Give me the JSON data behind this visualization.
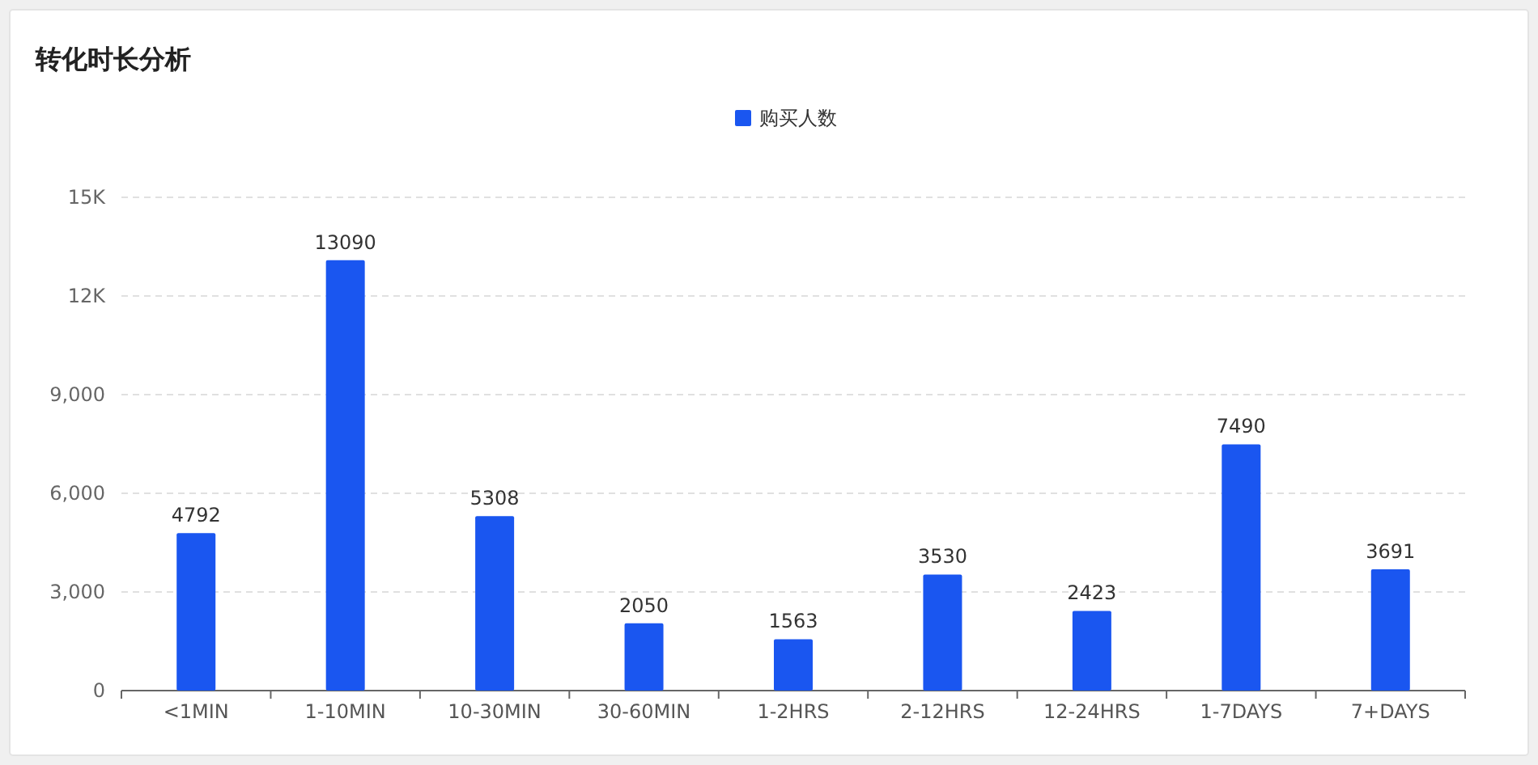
{
  "chart_data": {
    "type": "bar",
    "title": "转化时长分析",
    "categories": [
      "<1MIN",
      "1-10MIN",
      "10-30MIN",
      "30-60MIN",
      "1-2HRS",
      "2-12HRS",
      "12-24HRS",
      "1-7DAYS",
      "7+DAYS"
    ],
    "series": [
      {
        "name": "购买人数",
        "color": "#1a56f0",
        "values": [
          4792,
          13090,
          5308,
          2050,
          1563,
          3530,
          2423,
          7490,
          3691
        ]
      }
    ],
    "ylim": [
      0,
      15000
    ],
    "yticks": [
      0,
      {
        "value": 3000,
        "label": "3,000"
      },
      {
        "value": 6000,
        "label": "6,000"
      },
      {
        "value": 9000,
        "label": "9,000"
      },
      {
        "value": 12000,
        "label": "12K"
      },
      {
        "value": 15000,
        "label": "15K"
      }
    ],
    "grid": "y",
    "legend": "top",
    "data_labels": true
  }
}
